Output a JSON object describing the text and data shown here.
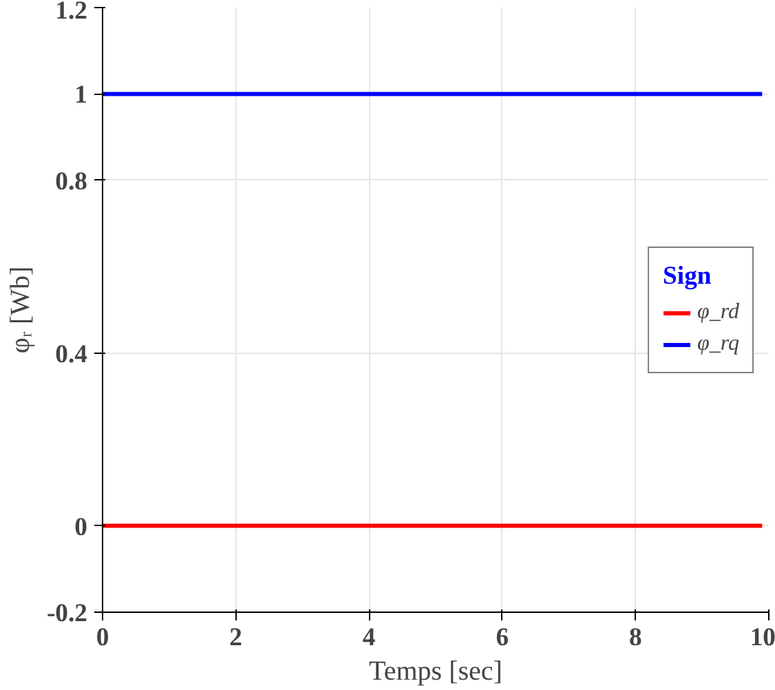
{
  "chart_data": {
    "type": "line",
    "xlabel": "Temps [sec]",
    "ylabel": "φᵣ [Wb]",
    "legend_title": "Sign",
    "x": [
      0,
      9.9
    ],
    "series": [
      {
        "name": "φ_rd",
        "color": "#ff0000",
        "values": [
          0,
          0
        ]
      },
      {
        "name": "φ_rq",
        "color": "#0000ff",
        "values": [
          1,
          1
        ]
      }
    ],
    "xlim": [
      0,
      10
    ],
    "xticks": [
      0,
      2,
      4,
      6,
      8,
      10
    ],
    "ylim": [
      -0.2,
      1.2
    ],
    "yticks": [
      -0.2,
      0,
      0.4,
      0.8,
      1,
      1.2
    ],
    "grid": true,
    "legend": "right",
    "line_style": "solid",
    "marker": "none"
  }
}
